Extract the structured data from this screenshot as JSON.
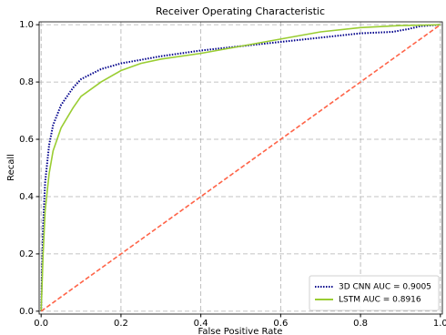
{
  "chart_data": {
    "type": "line",
    "title": "Receiver Operating Characteristic",
    "x_label": "False Positive Rate",
    "y_label": "Recall",
    "xlim": [
      -0.005,
      1.005
    ],
    "ylim": [
      -0.01,
      1.01
    ],
    "xticks": [
      {
        "value": 0,
        "label": "0.0"
      },
      {
        "value": 0.2,
        "label": "0.2"
      },
      {
        "value": 0.4,
        "label": "0.4"
      },
      {
        "value": 0.6,
        "label": "0.6"
      },
      {
        "value": 0.8,
        "label": "0.8"
      },
      {
        "value": 1,
        "label": "1.0"
      }
    ],
    "yticks": [
      {
        "value": 0,
        "label": "0.0"
      },
      {
        "value": 0.2,
        "label": "0.2"
      },
      {
        "value": 0.4,
        "label": "0.4"
      },
      {
        "value": 0.6,
        "label": "0.6"
      },
      {
        "value": 0.8,
        "label": "0.8"
      },
      {
        "value": 1,
        "label": "1.0"
      }
    ],
    "grid": true,
    "legend": "lower right",
    "series": [
      {
        "name": "3D CNN AUC = 0.9005",
        "color": "#00008b",
        "linestyle": "dotted",
        "x": [
          0,
          0.005,
          0.01,
          0.02,
          0.03,
          0.05,
          0.08,
          0.1,
          0.15,
          0.2,
          0.3,
          0.4,
          0.5,
          0.6,
          0.7,
          0.8,
          0.88,
          0.92,
          0.95,
          1
        ],
        "values": [
          0,
          0.3,
          0.45,
          0.58,
          0.65,
          0.72,
          0.78,
          0.81,
          0.845,
          0.865,
          0.89,
          0.91,
          0.925,
          0.94,
          0.955,
          0.97,
          0.975,
          0.985,
          0.995,
          1
        ]
      },
      {
        "name": "LSTM AUC = 0.8916",
        "color": "#9acd32",
        "linestyle": "solid",
        "x": [
          0,
          0.005,
          0.01,
          0.02,
          0.03,
          0.05,
          0.08,
          0.1,
          0.15,
          0.2,
          0.25,
          0.3,
          0.4,
          0.5,
          0.6,
          0.7,
          0.8,
          0.9,
          1
        ],
        "values": [
          0,
          0.2,
          0.35,
          0.48,
          0.56,
          0.64,
          0.71,
          0.75,
          0.8,
          0.84,
          0.865,
          0.88,
          0.9,
          0.925,
          0.95,
          0.975,
          0.99,
          0.997,
          1
        ]
      },
      {
        "color": "#ff6347",
        "linestyle": "dashed",
        "x": [
          0,
          1
        ],
        "values": [
          0,
          1
        ]
      }
    ]
  }
}
